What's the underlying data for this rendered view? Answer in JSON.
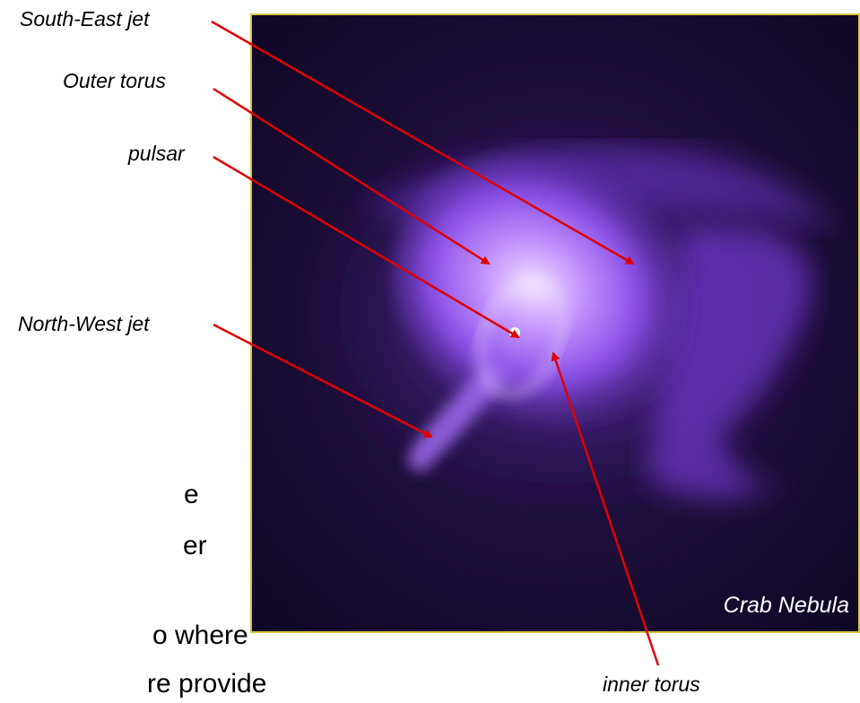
{
  "callouts": {
    "south_east_jet": "South-East jet",
    "outer_torus": "Outer torus",
    "pulsar": "pulsar",
    "north_west_jet": "North-West jet",
    "inner_torus": "inner torus"
  },
  "image_caption": "Crab Nebula",
  "body_text_fragments": [
    "e",
    "er",
    "o where",
    "re provide"
  ],
  "colors": {
    "arrow": "#e00000",
    "frame": "#d8c640",
    "nebula": "#9b5cff",
    "background": "#140a2a"
  }
}
